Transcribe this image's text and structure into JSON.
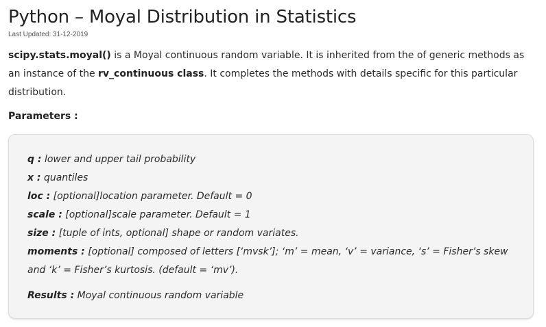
{
  "article": {
    "title": "Python – Moyal Distribution in Statistics",
    "last_updated": "Last Updated: 31-12-2019"
  },
  "intro": {
    "fn_name": "scipy.stats.moyal()",
    "text1": " is a Moyal continuous random variable. It is inherited from the of generic methods as an instance of the ",
    "class_name": "rv_continuous class",
    "text2": ". It completes the methods with details specific for this particular distribution."
  },
  "parameters": {
    "heading": "Parameters :",
    "items": [
      {
        "name": "q :",
        "desc": " lower and upper tail probability"
      },
      {
        "name": "x :",
        "desc": " quantiles"
      },
      {
        "name": "loc :",
        "desc": " [optional]location parameter. Default = 0"
      },
      {
        "name": "scale :",
        "desc": " [optional]scale parameter. Default = 1"
      },
      {
        "name": "size :",
        "desc": " [tuple of ints, optional] shape or random variates."
      },
      {
        "name": "moments :",
        "desc": " [optional] composed of letters [‘mvsk’]; ‘m’ = mean, ‘v’ = variance, ‘s’ = Fisher’s skew and ‘k’ = Fisher’s kurtosis. (default = ‘mv’)."
      }
    ],
    "results": {
      "name": "Results :",
      "desc": " Moyal continuous random variable"
    }
  }
}
